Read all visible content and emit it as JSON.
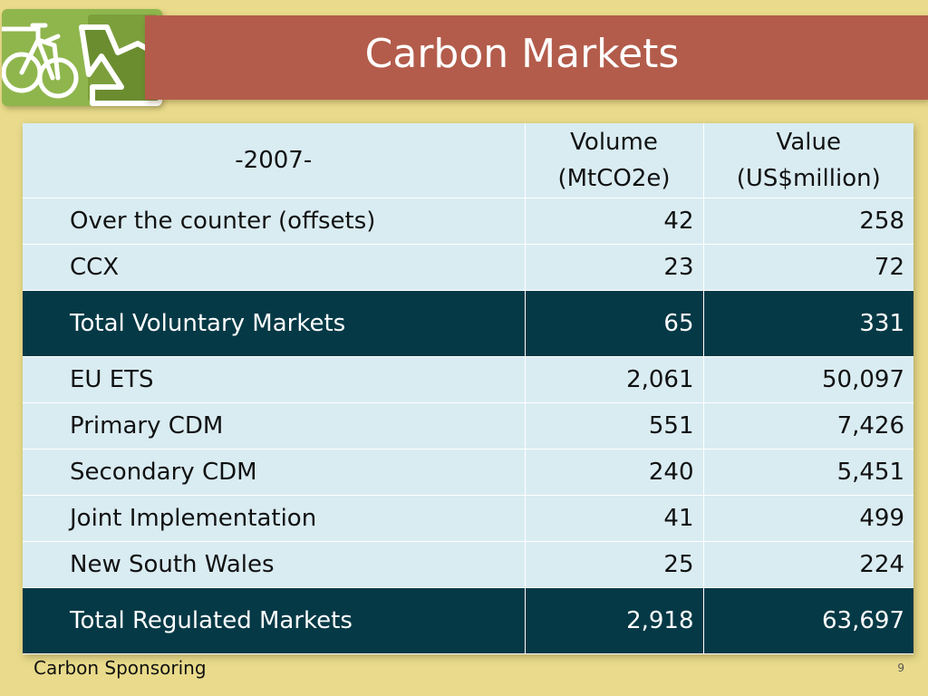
{
  "slide": {
    "title": "Carbon Markets",
    "footer_text": "Carbon Sponsoring",
    "page_number": "9",
    "logo_icon": "bicycle-and-sofa-logo-icon"
  },
  "table": {
    "headers": {
      "year": "-2007-",
      "volume_line1": "Volume",
      "volume_line2": "(MtCO2e)",
      "value_line1": "Value",
      "value_line2": "(US$million)"
    },
    "rows": [
      {
        "name": "Over the counter (offsets)",
        "volume": "42",
        "value": "258",
        "total": false
      },
      {
        "name": "CCX",
        "volume": "23",
        "value": "72",
        "total": false
      },
      {
        "name": "Total Voluntary Markets",
        "volume": "65",
        "value": "331",
        "total": true
      },
      {
        "name": "EU ETS",
        "volume": "2,061",
        "value": "50,097",
        "total": false
      },
      {
        "name": "Primary CDM",
        "volume": "551",
        "value": "7,426",
        "total": false
      },
      {
        "name": "Secondary CDM",
        "volume": "240",
        "value": "5,451",
        "total": false
      },
      {
        "name": "Joint Implementation",
        "volume": "41",
        "value": "499",
        "total": false
      },
      {
        "name": "New South Wales",
        "volume": "25",
        "value": "224",
        "total": false
      },
      {
        "name": "Total Regulated Markets",
        "volume": "2,918",
        "value": "63,697",
        "total": true
      }
    ]
  },
  "colors": {
    "background": "#e9db8b",
    "title_bar": "#b35c4b",
    "logo_green": "#8fb64d",
    "row_light": "#d9ecf2",
    "row_total": "#053946"
  }
}
